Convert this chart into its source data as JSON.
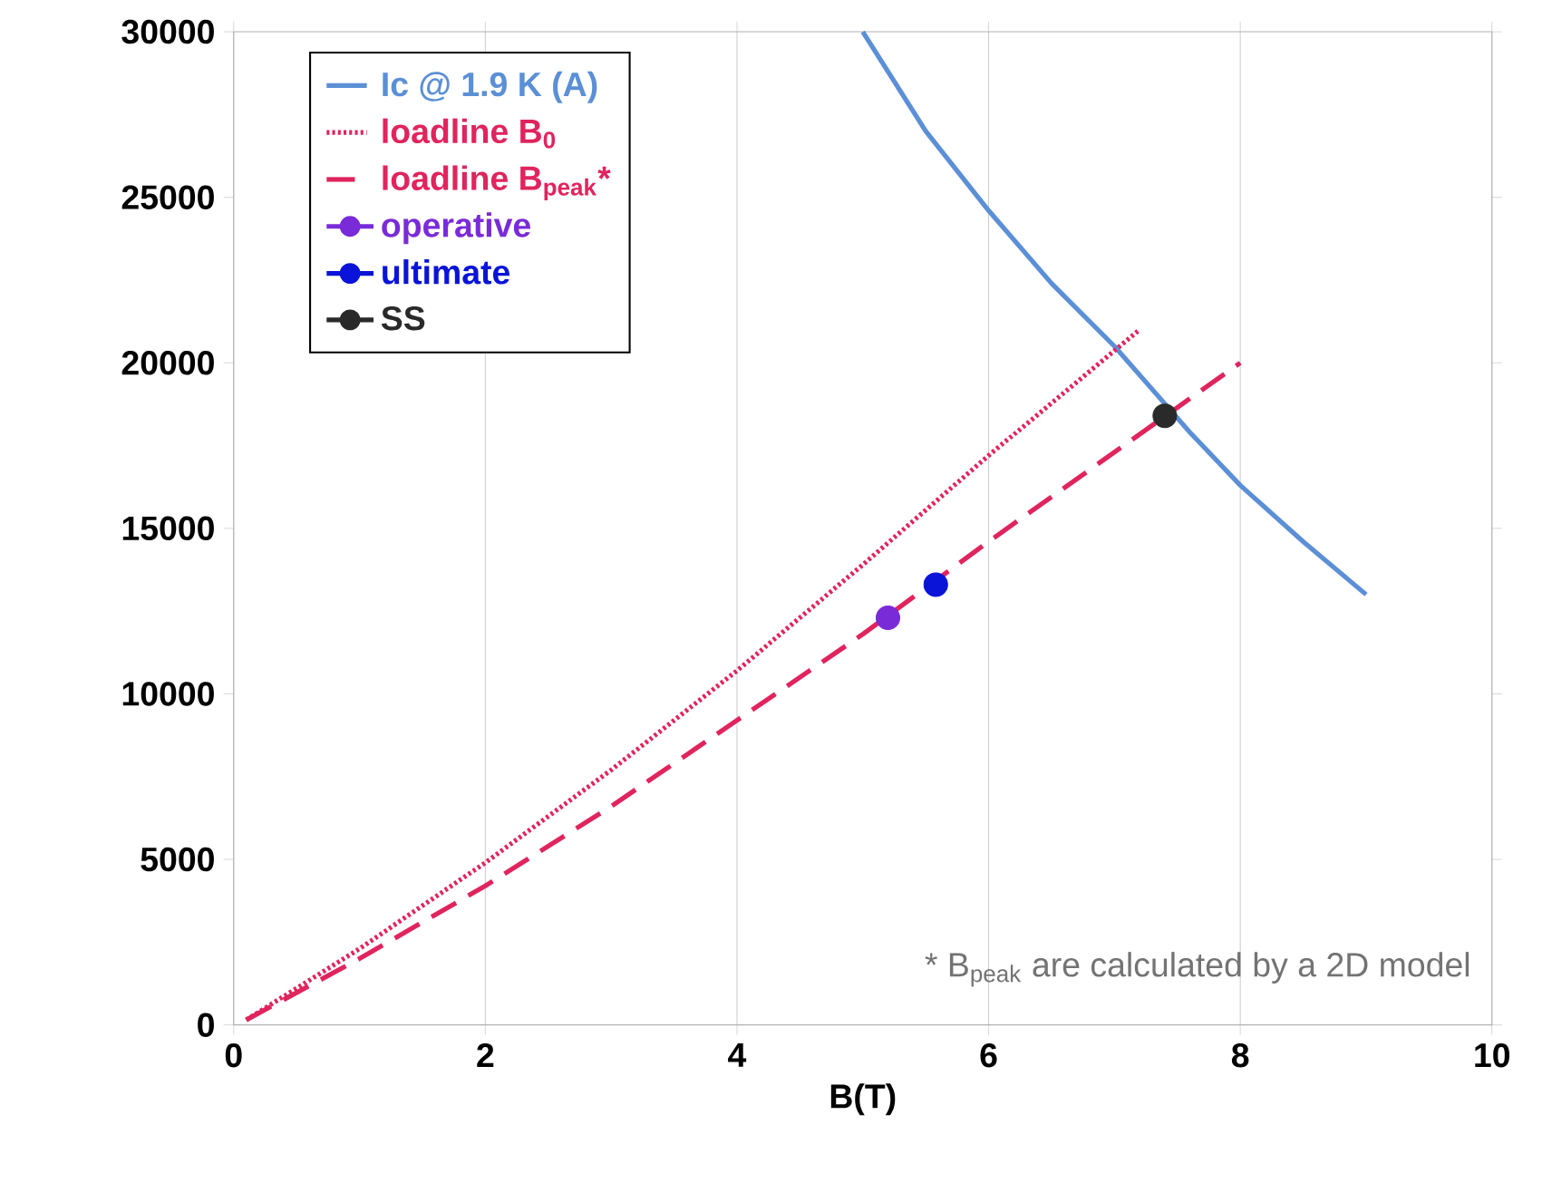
{
  "chart_data": {
    "type": "line",
    "xlabel": "B(T)",
    "xlim": [
      0,
      10
    ],
    "xticks": [
      0,
      2,
      4,
      6,
      8,
      10
    ],
    "ylim": [
      0,
      30000
    ],
    "yticks": [
      0,
      5000,
      10000,
      15000,
      20000,
      25000,
      30000
    ],
    "grid": "x",
    "legend": "top left",
    "series": [
      {
        "name": "Ic @ 1.9 K (A)",
        "color": "#5b8fd6",
        "line_style": "solid",
        "x": [
          5,
          5.5,
          6,
          6.5,
          7,
          7.6,
          8,
          8.5,
          9
        ],
        "values": [
          30000,
          27000,
          24600,
          22400,
          20500,
          17900,
          16300,
          14600,
          13000
        ]
      },
      {
        "name": "loadline B$_{0}$",
        "color": "#e0245e",
        "line_style": "dotted",
        "x": [
          0.1,
          1,
          2,
          3,
          4,
          5,
          6,
          7.2
        ],
        "values": [
          150,
          2300,
          4900,
          7700,
          10700,
          13900,
          17200,
          21000
        ]
      },
      {
        "name": "loadline B$_{peak}$*",
        "color": "#e0245e",
        "line_style": "dashed",
        "x": [
          0.1,
          1,
          2,
          3,
          4,
          5,
          6,
          7,
          8
        ],
        "values": [
          150,
          2000,
          4200,
          6600,
          9200,
          11800,
          14600,
          17300,
          20000
        ]
      },
      {
        "name": "operative",
        "type": "scatter",
        "marker": "circle",
        "color": "#7a2bd8",
        "x": [
          5.2
        ],
        "values": [
          12300
        ]
      },
      {
        "name": "ultimate",
        "type": "scatter",
        "marker": "circle",
        "color": "#0a14d8",
        "x": [
          5.58
        ],
        "values": [
          13300
        ]
      },
      {
        "name": "SS",
        "type": "scatter",
        "marker": "circle",
        "color": "#2a2a2a",
        "x": [
          7.4
        ],
        "values": [
          18400
        ]
      }
    ],
    "annotations": [
      "* B$_{peak}$ are calculated by a 2D model"
    ]
  }
}
